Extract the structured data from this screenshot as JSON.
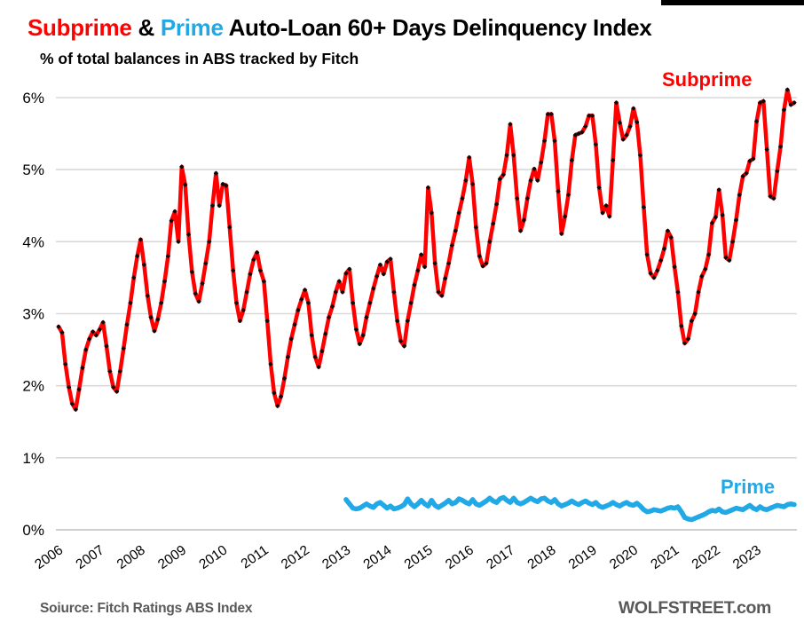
{
  "header": {
    "title_parts": [
      {
        "text": "Subprime",
        "color": "#FF0000"
      },
      {
        "text": " & ",
        "color": "#000000"
      },
      {
        "text": "Prime",
        "color": "#21A8E6"
      },
      {
        "text": " Auto-Loan 60+ Days Delinquency Index",
        "color": "#000000"
      }
    ],
    "subtitle": "% of total balances in ABS tracked by Fitch"
  },
  "footer": {
    "source": "Soiurce: Fitch Ratings ABS Index",
    "site": "WOLFSTREET.com"
  },
  "colors": {
    "subprime": "#FF0000",
    "prime": "#21A8E6",
    "marker": "#0B0B0B",
    "gridline": "#D9D9D9",
    "axis_line": "#BEBEBE",
    "footer_text": "#595959",
    "accent_bar": "#000000"
  },
  "chart_data": {
    "type": "line",
    "title": "Subprime & Prime Auto-Loan 60+ Days Delinquency Index",
    "subtitle": "% of total balances in ABS tracked by Fitch",
    "frequency": "monthly",
    "grid": "horizontal-only",
    "ylim": [
      0,
      6.3
    ],
    "y_ticks": [
      {
        "value": 6,
        "label": "6%"
      },
      {
        "value": 5,
        "label": "5%"
      },
      {
        "value": 4,
        "label": "4%"
      },
      {
        "value": 3,
        "label": "3%"
      },
      {
        "value": 2,
        "label": "2%"
      },
      {
        "value": 1,
        "label": "1%"
      },
      {
        "value": 0,
        "label": "0%"
      }
    ],
    "x_ticks": [
      2006,
      2007,
      2008,
      2009,
      2010,
      2011,
      2012,
      2013,
      2014,
      2015,
      2016,
      2017,
      2018,
      2019,
      2020,
      2021,
      2022,
      2023
    ],
    "series": [
      {
        "name": "Subprime",
        "color": "#FF0000",
        "markers": true,
        "marker_color": "#0B0B0B",
        "start_year": 2006,
        "start_month": 1,
        "values": [
          2.82,
          2.74,
          2.3,
          1.98,
          1.75,
          1.67,
          1.95,
          2.25,
          2.5,
          2.65,
          2.75,
          2.7,
          2.78,
          2.88,
          2.55,
          2.2,
          1.98,
          1.92,
          2.2,
          2.52,
          2.85,
          3.15,
          3.5,
          3.8,
          4.03,
          3.68,
          3.25,
          2.95,
          2.76,
          2.92,
          3.15,
          3.45,
          3.8,
          4.29,
          4.42,
          4.0,
          5.04,
          4.79,
          4.1,
          3.58,
          3.28,
          3.17,
          3.42,
          3.7,
          4.0,
          4.5,
          4.95,
          4.5,
          4.8,
          4.78,
          4.2,
          3.6,
          3.15,
          2.9,
          3.05,
          3.3,
          3.55,
          3.75,
          3.85,
          3.6,
          3.45,
          2.9,
          2.3,
          1.9,
          1.72,
          1.85,
          2.1,
          2.4,
          2.65,
          2.85,
          3.05,
          3.2,
          3.33,
          3.15,
          2.7,
          2.4,
          2.26,
          2.48,
          2.72,
          2.95,
          3.1,
          3.3,
          3.45,
          3.3,
          3.56,
          3.62,
          3.15,
          2.78,
          2.58,
          2.7,
          2.95,
          3.15,
          3.35,
          3.52,
          3.68,
          3.55,
          3.72,
          3.76,
          3.3,
          2.9,
          2.62,
          2.55,
          2.9,
          3.15,
          3.4,
          3.6,
          3.82,
          3.65,
          4.75,
          4.4,
          3.7,
          3.3,
          3.25,
          3.49,
          3.7,
          3.95,
          4.15,
          4.4,
          4.6,
          4.85,
          5.17,
          4.8,
          4.2,
          3.8,
          3.66,
          3.7,
          4.0,
          4.25,
          4.52,
          4.87,
          4.93,
          5.2,
          5.63,
          5.2,
          4.6,
          4.15,
          4.3,
          4.6,
          4.85,
          5.01,
          4.85,
          5.1,
          5.4,
          5.77,
          5.77,
          5.4,
          4.7,
          4.11,
          4.35,
          4.65,
          5.13,
          5.48,
          5.5,
          5.52,
          5.6,
          5.75,
          5.75,
          5.35,
          4.75,
          4.4,
          4.5,
          4.35,
          5.13,
          5.93,
          5.65,
          5.42,
          5.48,
          5.6,
          5.85,
          5.66,
          5.2,
          4.48,
          3.82,
          3.56,
          3.5,
          3.6,
          3.74,
          3.9,
          4.15,
          4.06,
          3.65,
          3.3,
          2.83,
          2.59,
          2.65,
          2.9,
          3.0,
          3.3,
          3.52,
          3.62,
          3.82,
          4.26,
          4.34,
          4.72,
          4.37,
          3.78,
          3.74,
          4.0,
          4.3,
          4.65,
          4.91,
          4.95,
          5.12,
          5.15,
          5.67,
          5.93,
          5.95,
          5.28,
          4.63,
          4.6,
          4.98,
          5.32,
          5.83,
          6.11,
          5.9,
          5.93
        ]
      },
      {
        "name": "Prime",
        "color": "#21A8E6",
        "markers": false,
        "start_year": 2013,
        "start_month": 1,
        "values": [
          0.42,
          0.36,
          0.3,
          0.29,
          0.3,
          0.33,
          0.36,
          0.33,
          0.31,
          0.36,
          0.38,
          0.34,
          0.3,
          0.33,
          0.29,
          0.3,
          0.32,
          0.35,
          0.43,
          0.36,
          0.32,
          0.36,
          0.41,
          0.36,
          0.33,
          0.41,
          0.34,
          0.31,
          0.34,
          0.37,
          0.41,
          0.36,
          0.38,
          0.43,
          0.41,
          0.38,
          0.36,
          0.42,
          0.36,
          0.34,
          0.37,
          0.4,
          0.44,
          0.4,
          0.38,
          0.43,
          0.45,
          0.41,
          0.38,
          0.44,
          0.38,
          0.36,
          0.38,
          0.41,
          0.44,
          0.41,
          0.39,
          0.43,
          0.44,
          0.4,
          0.38,
          0.42,
          0.36,
          0.33,
          0.35,
          0.37,
          0.4,
          0.37,
          0.35,
          0.38,
          0.4,
          0.37,
          0.35,
          0.38,
          0.33,
          0.31,
          0.33,
          0.35,
          0.38,
          0.35,
          0.33,
          0.36,
          0.38,
          0.35,
          0.34,
          0.37,
          0.33,
          0.28,
          0.25,
          0.26,
          0.28,
          0.27,
          0.26,
          0.28,
          0.3,
          0.31,
          0.3,
          0.32,
          0.25,
          0.17,
          0.15,
          0.14,
          0.16,
          0.18,
          0.2,
          0.22,
          0.25,
          0.27,
          0.26,
          0.29,
          0.25,
          0.24,
          0.26,
          0.28,
          0.3,
          0.29,
          0.28,
          0.31,
          0.34,
          0.3,
          0.28,
          0.32,
          0.29,
          0.28,
          0.3,
          0.32,
          0.34,
          0.33,
          0.32,
          0.35,
          0.36,
          0.35
        ]
      }
    ],
    "annotations": [
      {
        "text": "Subprime",
        "color": "#FF0000",
        "position": "upper-right"
      },
      {
        "text": "Prime",
        "color": "#21A8E6",
        "position": "lower-right"
      }
    ]
  }
}
